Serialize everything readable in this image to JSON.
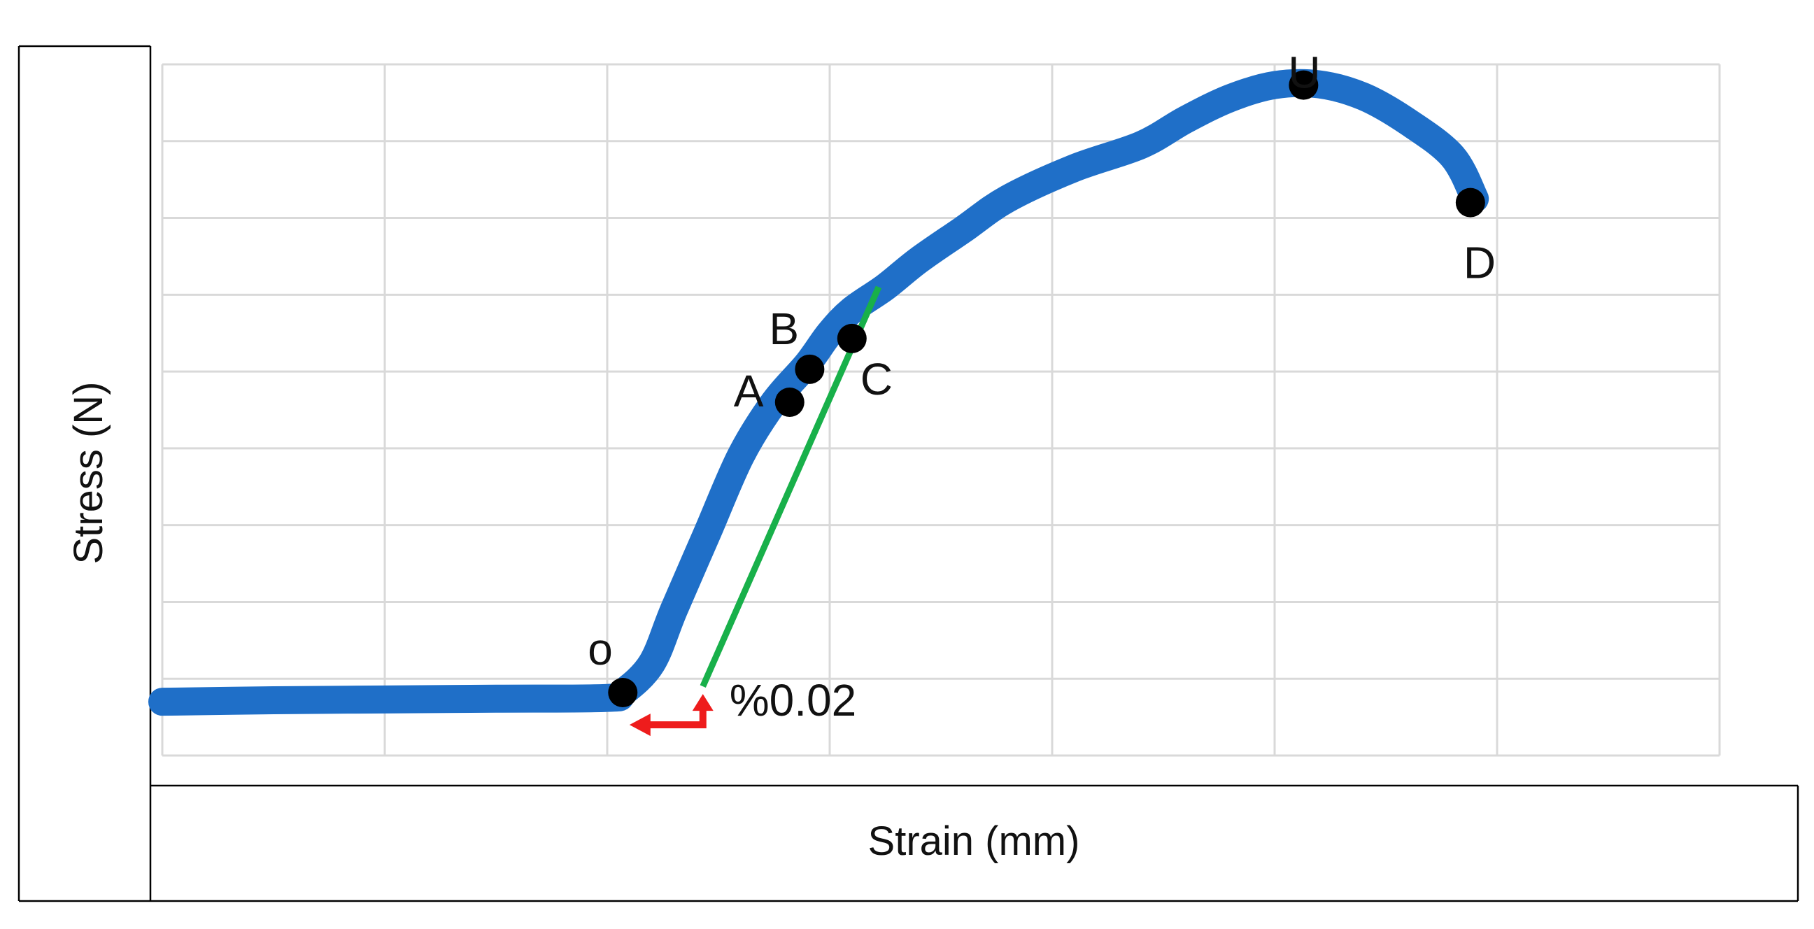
{
  "chart_data": {
    "type": "line",
    "title": "",
    "xlabel": "Strain (mm)",
    "ylabel": "Stress (N)",
    "xlim": [
      0,
      7
    ],
    "ylim": [
      0,
      9
    ],
    "grid": true,
    "tick_labels_shown": false,
    "colors": {
      "curve": "#1f6fc8",
      "offset_line": "#18b04a",
      "arrow": "#ee1c1c",
      "points": "#000000",
      "grid": "#d9d9d9"
    },
    "series": [
      {
        "x": [
          0.0,
          0.5,
          1.0,
          1.5,
          2.0,
          2.07,
          2.2,
          2.3,
          2.45,
          2.6,
          2.75,
          2.9,
          3.0,
          3.1,
          3.25,
          3.4,
          3.6,
          3.8,
          4.1,
          4.4,
          4.6,
          4.8,
          5.0,
          5.2,
          5.4,
          5.6,
          5.8,
          5.9
        ],
        "y": [
          0.7,
          0.72,
          0.73,
          0.74,
          0.75,
          0.82,
          1.2,
          1.9,
          2.9,
          3.9,
          4.6,
          5.1,
          5.5,
          5.8,
          6.1,
          6.45,
          6.85,
          7.25,
          7.65,
          7.95,
          8.28,
          8.56,
          8.73,
          8.74,
          8.58,
          8.25,
          7.8,
          7.25
        ]
      }
    ],
    "points": [
      {
        "label": "o",
        "x": 2.07,
        "y": 0.82
      },
      {
        "label": "A",
        "x": 2.82,
        "y": 4.6
      },
      {
        "label": "B",
        "x": 2.91,
        "y": 5.03
      },
      {
        "label": "C",
        "x": 3.1,
        "y": 5.43
      },
      {
        "label": "U",
        "x": 5.13,
        "y": 8.73
      },
      {
        "label": "D",
        "x": 5.88,
        "y": 7.2
      }
    ],
    "offset_line": {
      "x": [
        2.43,
        3.22
      ],
      "y": [
        0.9,
        6.1
      ],
      "label": "%0.02"
    },
    "offset_arrow": {
      "x_from": 2.43,
      "x_to": 2.1,
      "y": 0.4
    }
  }
}
